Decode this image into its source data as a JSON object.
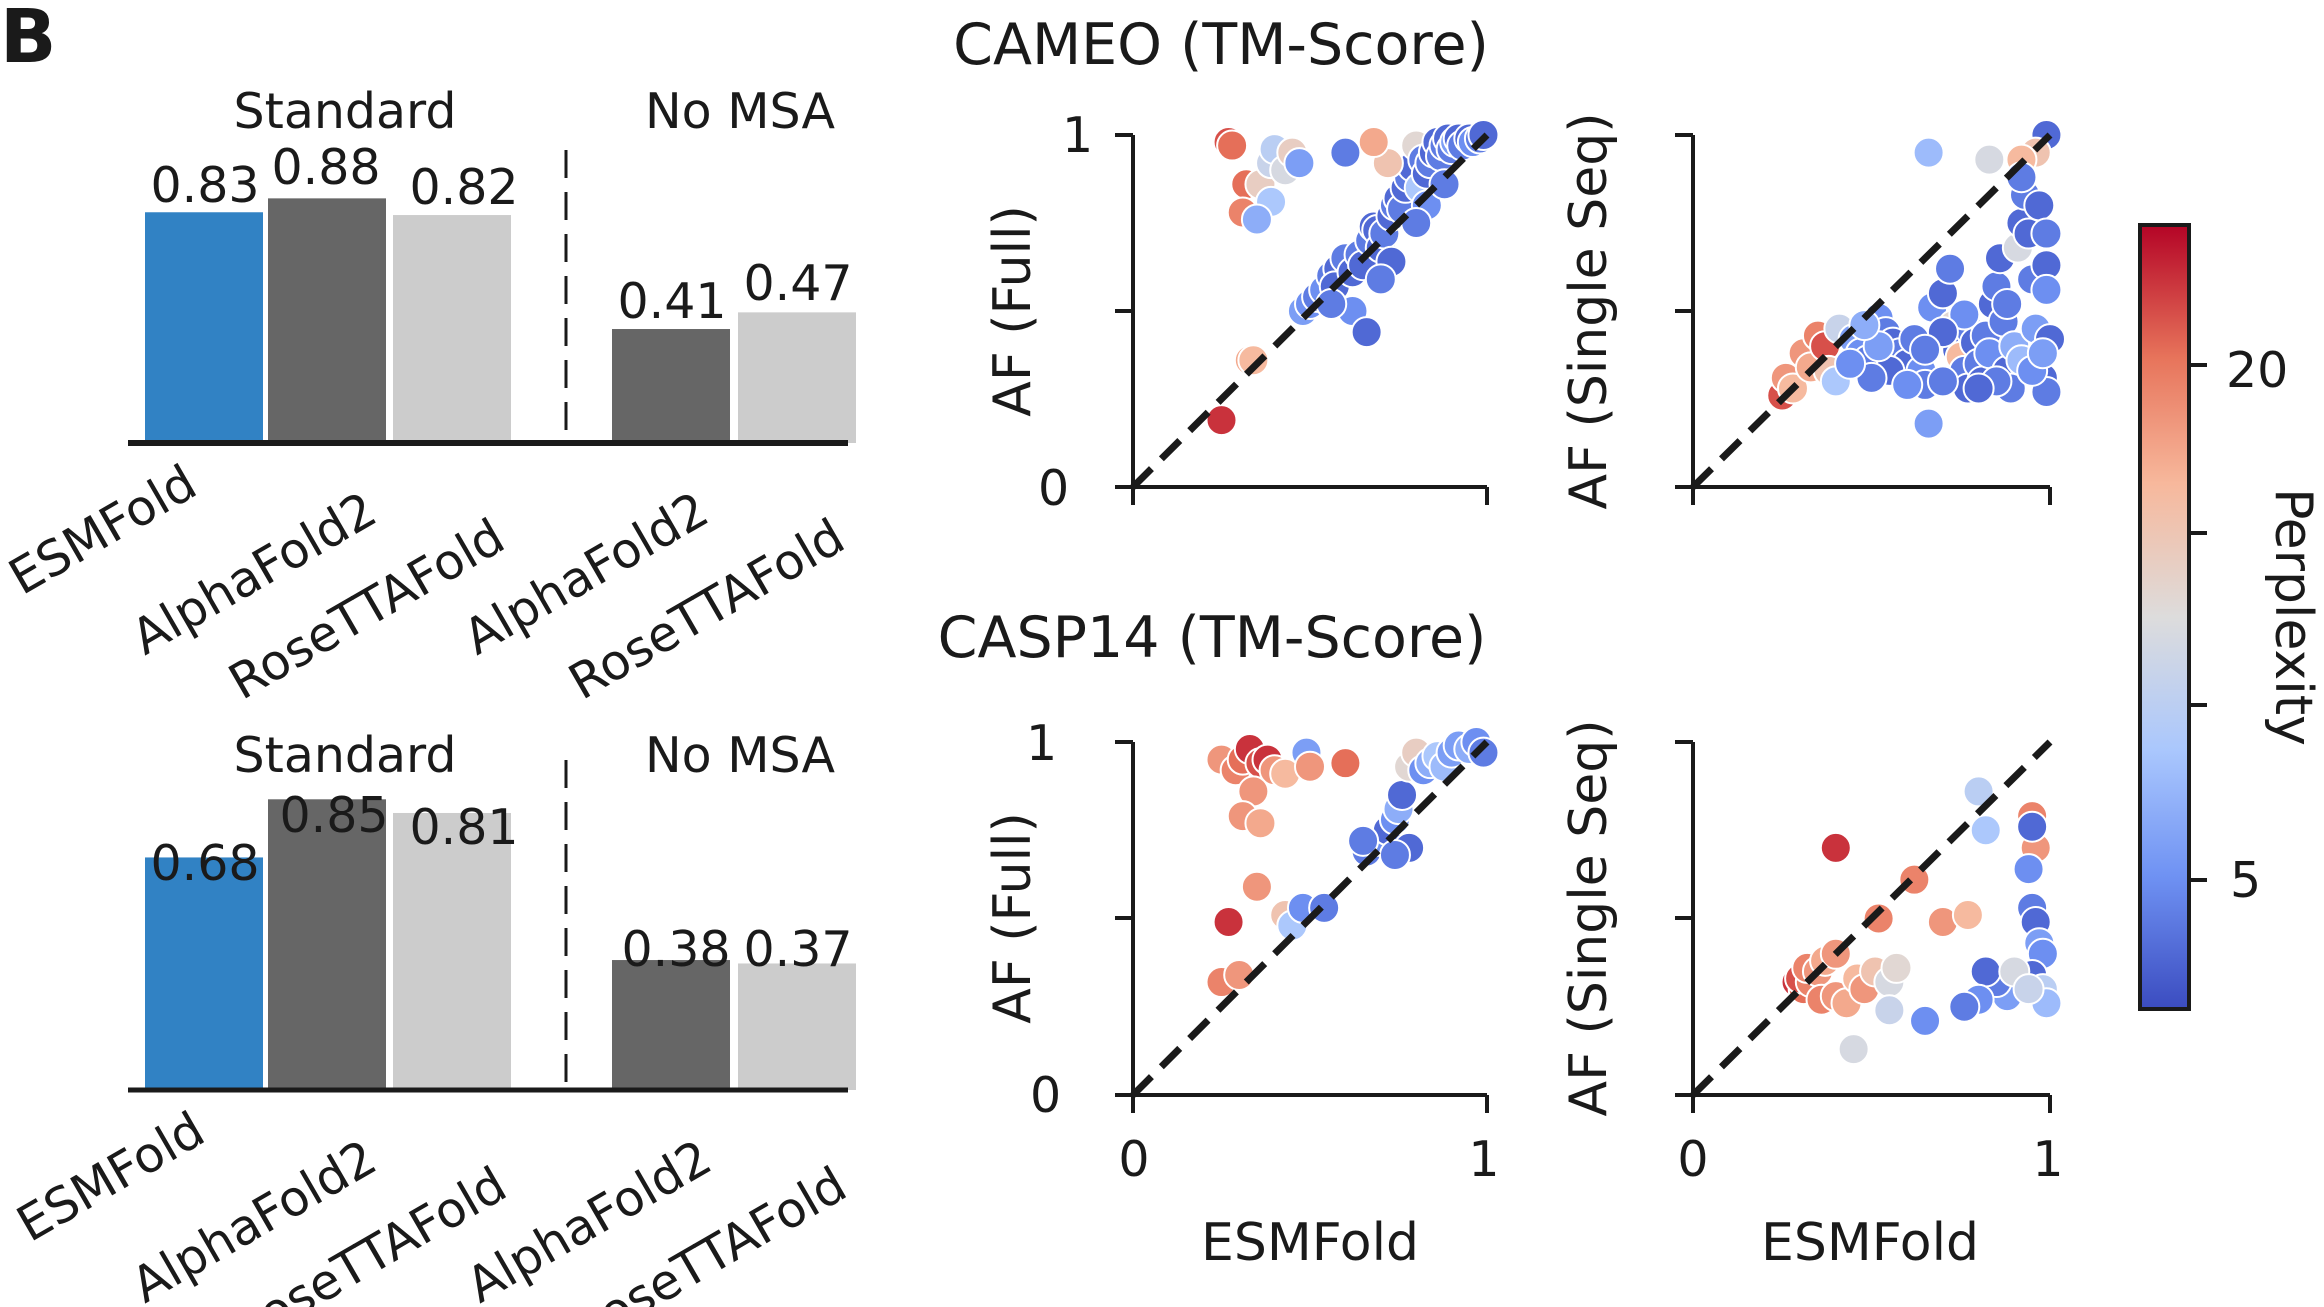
{
  "panel_letter": "B",
  "chart_data": [
    {
      "type": "bar",
      "panel": "cameo-bars",
      "groups": [
        {
          "label": "Standard",
          "categories": [
            "ESMFold",
            "AlphaFold2",
            "RoseTTAFold"
          ],
          "values": [
            0.83,
            0.88,
            0.82
          ],
          "colors": [
            "#3182c4",
            "#666666",
            "#cccccc"
          ]
        },
        {
          "label": "No MSA",
          "categories": [
            "AlphaFold2",
            "RoseTTAFold"
          ],
          "values": [
            0.41,
            0.47
          ],
          "colors": [
            "#666666",
            "#cccccc"
          ]
        }
      ],
      "value_labels": [
        "0.83",
        "0.88",
        "0.82",
        "0.41",
        "0.47"
      ],
      "ylim": [
        0,
        1
      ]
    },
    {
      "type": "bar",
      "panel": "casp14-bars",
      "groups": [
        {
          "label": "Standard",
          "categories": [
            "ESMFold",
            "AlphaFold2",
            "RoseTTAFold"
          ],
          "values": [
            0.68,
            0.85,
            0.81
          ],
          "colors": [
            "#3182c4",
            "#666666",
            "#cccccc"
          ]
        },
        {
          "label": "No MSA",
          "categories": [
            "AlphaFold2",
            "RoseTTAFold"
          ],
          "values": [
            0.38,
            0.37
          ],
          "colors": [
            "#666666",
            "#cccccc"
          ]
        }
      ],
      "value_labels": [
        "0.68",
        "0.85",
        "0.81",
        "0.38",
        "0.37"
      ],
      "ylim": [
        0,
        1
      ]
    },
    {
      "type": "scatter",
      "panel": "cameo-full",
      "title": "CAMEO (TM-Score)",
      "xlabel": "",
      "ylabel": "AF (Full)",
      "xlim": [
        0,
        1
      ],
      "ylim": [
        0,
        1
      ],
      "yticks": [
        "0",
        "1"
      ],
      "xticks": [],
      "diagonal": true,
      "points": [
        [
          0.25,
          0.19,
          22
        ],
        [
          0.27,
          0.98,
          21
        ],
        [
          0.28,
          0.97,
          20
        ],
        [
          0.32,
          0.86,
          20
        ],
        [
          0.31,
          0.78,
          19
        ],
        [
          0.33,
          0.36,
          17
        ],
        [
          0.34,
          0.36,
          16
        ],
        [
          0.36,
          0.86,
          14
        ],
        [
          0.39,
          0.81,
          9
        ],
        [
          0.35,
          0.76,
          7
        ],
        [
          0.39,
          0.92,
          11
        ],
        [
          0.4,
          0.96,
          10
        ],
        [
          0.43,
          0.9,
          12
        ],
        [
          0.45,
          0.95,
          14
        ],
        [
          0.47,
          0.92,
          6
        ],
        [
          0.48,
          0.5,
          6
        ],
        [
          0.5,
          0.52,
          5
        ],
        [
          0.52,
          0.54,
          4
        ],
        [
          0.54,
          0.56,
          5
        ],
        [
          0.56,
          0.6,
          4
        ],
        [
          0.58,
          0.62,
          3
        ],
        [
          0.57,
          0.57,
          3
        ],
        [
          0.6,
          0.65,
          4
        ],
        [
          0.62,
          0.61,
          3
        ],
        [
          0.62,
          0.5,
          5
        ],
        [
          0.64,
          0.66,
          4
        ],
        [
          0.65,
          0.63,
          3
        ],
        [
          0.66,
          0.44,
          3
        ],
        [
          0.67,
          0.7,
          4
        ],
        [
          0.68,
          0.74,
          3
        ],
        [
          0.69,
          0.73,
          3
        ],
        [
          0.7,
          0.68,
          3
        ],
        [
          0.71,
          0.72,
          4
        ],
        [
          0.73,
          0.77,
          3
        ],
        [
          0.74,
          0.8,
          4
        ],
        [
          0.75,
          0.82,
          3
        ],
        [
          0.76,
          0.79,
          4
        ],
        [
          0.77,
          0.85,
          3
        ],
        [
          0.78,
          0.88,
          4
        ],
        [
          0.79,
          0.91,
          3
        ],
        [
          0.8,
          0.97,
          13
        ],
        [
          0.81,
          0.85,
          9
        ],
        [
          0.82,
          0.93,
          4
        ],
        [
          0.83,
          0.89,
          3
        ],
        [
          0.84,
          0.92,
          4
        ],
        [
          0.85,
          0.95,
          3
        ],
        [
          0.86,
          0.98,
          3
        ],
        [
          0.87,
          0.94,
          4
        ],
        [
          0.88,
          0.97,
          4
        ],
        [
          0.89,
          0.99,
          3
        ],
        [
          0.9,
          0.96,
          4
        ],
        [
          0.91,
          0.98,
          6
        ],
        [
          0.92,
          0.99,
          3
        ],
        [
          0.93,
          0.97,
          4
        ],
        [
          0.95,
          0.99,
          3
        ],
        [
          0.96,
          0.98,
          5
        ],
        [
          0.98,
          0.99,
          4
        ],
        [
          0.99,
          1.0,
          3
        ],
        [
          0.72,
          0.92,
          15
        ],
        [
          0.68,
          0.98,
          17
        ],
        [
          0.6,
          0.95,
          4
        ],
        [
          0.83,
          0.8,
          5
        ],
        [
          0.88,
          0.86,
          4
        ],
        [
          0.8,
          0.75,
          4
        ],
        [
          0.73,
          0.64,
          3
        ],
        [
          0.56,
          0.52,
          4
        ],
        [
          0.7,
          0.59,
          4
        ]
      ]
    },
    {
      "type": "scatter",
      "panel": "cameo-single",
      "xlabel": "",
      "ylabel": "AF (Single Seq)",
      "xlim": [
        0,
        1
      ],
      "ylim": [
        0,
        1
      ],
      "yticks": [],
      "xticks": [],
      "diagonal": true,
      "points": [
        [
          0.25,
          0.26,
          21
        ],
        [
          0.26,
          0.31,
          18
        ],
        [
          0.28,
          0.28,
          16
        ],
        [
          0.31,
          0.38,
          18
        ],
        [
          0.33,
          0.34,
          17
        ],
        [
          0.35,
          0.43,
          19
        ],
        [
          0.37,
          0.4,
          21
        ],
        [
          0.38,
          0.33,
          15
        ],
        [
          0.4,
          0.3,
          9
        ],
        [
          0.41,
          0.45,
          11
        ],
        [
          0.45,
          0.42,
          6
        ],
        [
          0.47,
          0.38,
          5
        ],
        [
          0.49,
          0.36,
          4
        ],
        [
          0.52,
          0.48,
          5
        ],
        [
          0.54,
          0.44,
          4
        ],
        [
          0.56,
          0.41,
          3
        ],
        [
          0.58,
          0.38,
          4
        ],
        [
          0.6,
          0.35,
          3
        ],
        [
          0.62,
          0.42,
          4
        ],
        [
          0.64,
          0.33,
          5
        ],
        [
          0.65,
          0.29,
          4
        ],
        [
          0.66,
          0.18,
          6
        ],
        [
          0.67,
          0.51,
          5
        ],
        [
          0.7,
          0.55,
          3
        ],
        [
          0.72,
          0.62,
          4
        ],
        [
          0.73,
          0.46,
          13
        ],
        [
          0.74,
          0.39,
          3
        ],
        [
          0.75,
          0.37,
          16
        ],
        [
          0.76,
          0.33,
          4
        ],
        [
          0.77,
          0.28,
          3
        ],
        [
          0.78,
          0.44,
          4
        ],
        [
          0.79,
          0.41,
          3
        ],
        [
          0.8,
          0.35,
          4
        ],
        [
          0.81,
          0.3,
          3
        ],
        [
          0.82,
          0.43,
          4
        ],
        [
          0.83,
          0.38,
          5
        ],
        [
          0.84,
          0.52,
          3
        ],
        [
          0.85,
          0.57,
          4
        ],
        [
          0.86,
          0.65,
          3
        ],
        [
          0.87,
          0.47,
          4
        ],
        [
          0.88,
          0.33,
          3
        ],
        [
          0.89,
          0.28,
          4
        ],
        [
          0.9,
          0.4,
          7
        ],
        [
          0.91,
          0.68,
          12
        ],
        [
          0.92,
          0.75,
          3
        ],
        [
          0.93,
          0.83,
          4
        ],
        [
          0.94,
          0.72,
          3
        ],
        [
          0.95,
          0.59,
          4
        ],
        [
          0.96,
          0.45,
          6
        ],
        [
          0.97,
          0.37,
          4
        ],
        [
          0.98,
          0.31,
          3
        ],
        [
          0.99,
          0.27,
          4
        ],
        [
          1.0,
          0.42,
          3
        ],
        [
          0.99,
          1.0,
          3
        ],
        [
          0.96,
          0.95,
          15
        ],
        [
          0.92,
          0.93,
          16
        ],
        [
          0.66,
          0.95,
          8
        ],
        [
          0.83,
          0.93,
          12
        ],
        [
          0.92,
          0.88,
          4
        ],
        [
          0.97,
          0.8,
          3
        ],
        [
          0.99,
          0.72,
          4
        ],
        [
          0.99,
          0.63,
          3
        ],
        [
          0.99,
          0.56,
          5
        ],
        [
          0.88,
          0.52,
          4
        ],
        [
          0.76,
          0.49,
          5
        ],
        [
          0.7,
          0.44,
          3
        ],
        [
          0.65,
          0.39,
          4
        ],
        [
          0.55,
          0.33,
          3
        ],
        [
          0.5,
          0.31,
          4
        ],
        [
          0.44,
          0.35,
          5
        ],
        [
          0.92,
          0.36,
          8
        ],
        [
          0.95,
          0.33,
          5
        ],
        [
          0.98,
          0.38,
          6
        ],
        [
          0.85,
          0.3,
          4
        ],
        [
          0.8,
          0.28,
          3
        ],
        [
          0.7,
          0.3,
          4
        ],
        [
          0.6,
          0.29,
          5
        ],
        [
          0.52,
          0.4,
          6
        ],
        [
          0.48,
          0.46,
          7
        ]
      ]
    },
    {
      "type": "scatter",
      "panel": "casp14-full",
      "title": "CASP14 (TM-Score)",
      "xlabel": "ESMFold",
      "ylabel": "AF (Full)",
      "xlim": [
        0,
        1
      ],
      "ylim": [
        0,
        1
      ],
      "yticks": [
        "0",
        "1"
      ],
      "xticks": [
        "0",
        "1"
      ],
      "diagonal": true,
      "points": [
        [
          0.25,
          0.95,
          18
        ],
        [
          0.29,
          0.92,
          19
        ],
        [
          0.31,
          0.95,
          20
        ],
        [
          0.33,
          0.98,
          22
        ],
        [
          0.36,
          0.94,
          21
        ],
        [
          0.38,
          0.95,
          22
        ],
        [
          0.4,
          0.92,
          18
        ],
        [
          0.34,
          0.86,
          18
        ],
        [
          0.31,
          0.79,
          18
        ],
        [
          0.36,
          0.77,
          17
        ],
        [
          0.43,
          0.91,
          16
        ],
        [
          0.49,
          0.97,
          6
        ],
        [
          0.5,
          0.93,
          18
        ],
        [
          0.25,
          0.32,
          19
        ],
        [
          0.3,
          0.34,
          18
        ],
        [
          0.27,
          0.49,
          22
        ],
        [
          0.35,
          0.59,
          18
        ],
        [
          0.43,
          0.51,
          15
        ],
        [
          0.45,
          0.48,
          9
        ],
        [
          0.48,
          0.53,
          5
        ],
        [
          0.54,
          0.53,
          4
        ],
        [
          0.6,
          0.94,
          20
        ],
        [
          0.66,
          0.69,
          4
        ],
        [
          0.69,
          0.72,
          5
        ],
        [
          0.72,
          0.75,
          3
        ],
        [
          0.74,
          0.78,
          5
        ],
        [
          0.75,
          0.81,
          7
        ],
        [
          0.76,
          0.85,
          3
        ],
        [
          0.78,
          0.93,
          13
        ],
        [
          0.8,
          0.97,
          14
        ],
        [
          0.82,
          0.92,
          5
        ],
        [
          0.84,
          0.94,
          7
        ],
        [
          0.86,
          0.96,
          9
        ],
        [
          0.88,
          0.93,
          8
        ],
        [
          0.9,
          0.97,
          6
        ],
        [
          0.92,
          0.99,
          6
        ],
        [
          0.95,
          0.98,
          7
        ],
        [
          0.97,
          1.0,
          5
        ],
        [
          0.99,
          0.97,
          4
        ],
        [
          0.65,
          0.72,
          4
        ],
        [
          0.78,
          0.7,
          3
        ],
        [
          0.74,
          0.68,
          4
        ]
      ]
    },
    {
      "type": "scatter",
      "panel": "casp14-single",
      "xlabel": "ESMFold",
      "ylabel": "AF (Single Seq)",
      "xlim": [
        0,
        1
      ],
      "ylim": [
        0,
        1
      ],
      "yticks": [],
      "xticks": [
        "0",
        "1"
      ],
      "diagonal": true,
      "points": [
        [
          0.29,
          0.32,
          22
        ],
        [
          0.31,
          0.3,
          20
        ],
        [
          0.3,
          0.33,
          21
        ],
        [
          0.33,
          0.32,
          19
        ],
        [
          0.32,
          0.36,
          19
        ],
        [
          0.35,
          0.35,
          18
        ],
        [
          0.37,
          0.38,
          17
        ],
        [
          0.4,
          0.4,
          18
        ],
        [
          0.36,
          0.27,
          19
        ],
        [
          0.4,
          0.28,
          18
        ],
        [
          0.43,
          0.26,
          17
        ],
        [
          0.46,
          0.33,
          16
        ],
        [
          0.48,
          0.3,
          18
        ],
        [
          0.51,
          0.35,
          15
        ],
        [
          0.55,
          0.32,
          12
        ],
        [
          0.57,
          0.36,
          13
        ],
        [
          0.52,
          0.5,
          19
        ],
        [
          0.4,
          0.7,
          22
        ],
        [
          0.62,
          0.61,
          19
        ],
        [
          0.7,
          0.49,
          18
        ],
        [
          0.77,
          0.51,
          16
        ],
        [
          0.95,
          0.79,
          19
        ],
        [
          0.96,
          0.7,
          18
        ],
        [
          0.8,
          0.86,
          10
        ],
        [
          0.82,
          0.75,
          9
        ],
        [
          0.95,
          0.76,
          3
        ],
        [
          0.94,
          0.64,
          5
        ],
        [
          0.95,
          0.53,
          4
        ],
        [
          0.96,
          0.49,
          3
        ],
        [
          0.97,
          0.43,
          6
        ],
        [
          0.98,
          0.4,
          5
        ],
        [
          0.95,
          0.34,
          3
        ],
        [
          0.92,
          0.3,
          5
        ],
        [
          0.88,
          0.28,
          6
        ],
        [
          0.85,
          0.32,
          4
        ],
        [
          0.82,
          0.35,
          3
        ],
        [
          0.8,
          0.27,
          5
        ],
        [
          0.98,
          0.3,
          10
        ],
        [
          0.99,
          0.26,
          8
        ],
        [
          0.76,
          0.25,
          4
        ],
        [
          0.65,
          0.21,
          5
        ],
        [
          0.55,
          0.24,
          11
        ],
        [
          0.45,
          0.13,
          12
        ],
        [
          0.9,
          0.35,
          12
        ],
        [
          0.94,
          0.3,
          11
        ]
      ]
    },
    {
      "type": "colorbar",
      "panel": "perplexity-colorbar",
      "label": "Perplexity",
      "range": [
        1.5,
        23.5
      ],
      "ticks": [
        5,
        20
      ],
      "tick_labels": [
        "5",
        "20"
      ],
      "colormap": [
        "#3b4cc0",
        "#6f92f3",
        "#aac7fd",
        "#dddcdc",
        "#f7b89c",
        "#e7745b",
        "#b40426"
      ]
    }
  ],
  "labels": {
    "standard": "Standard",
    "no_msa": "No MSA",
    "esmfold": "ESMFold",
    "alphafold2": "AlphaFold2",
    "rosettafold": "RoseTTAFold",
    "cameo_title": "CAMEO (TM-Score)",
    "casp14_title": "CASP14 (TM-Score)",
    "af_full": "AF (Full)",
    "af_single": "AF (Single Seq)",
    "esmfold_axis": "ESMFold",
    "perplexity": "Perplexity",
    "tick_0": "0",
    "tick_1": "1",
    "tick_5": "5",
    "tick_20": "20",
    "v083": "0.83",
    "v088": "0.88",
    "v082": "0.82",
    "v041": "0.41",
    "v047": "0.47",
    "v068": "0.68",
    "v085": "0.85",
    "v081": "0.81",
    "v038": "0.38",
    "v037": "0.37"
  }
}
